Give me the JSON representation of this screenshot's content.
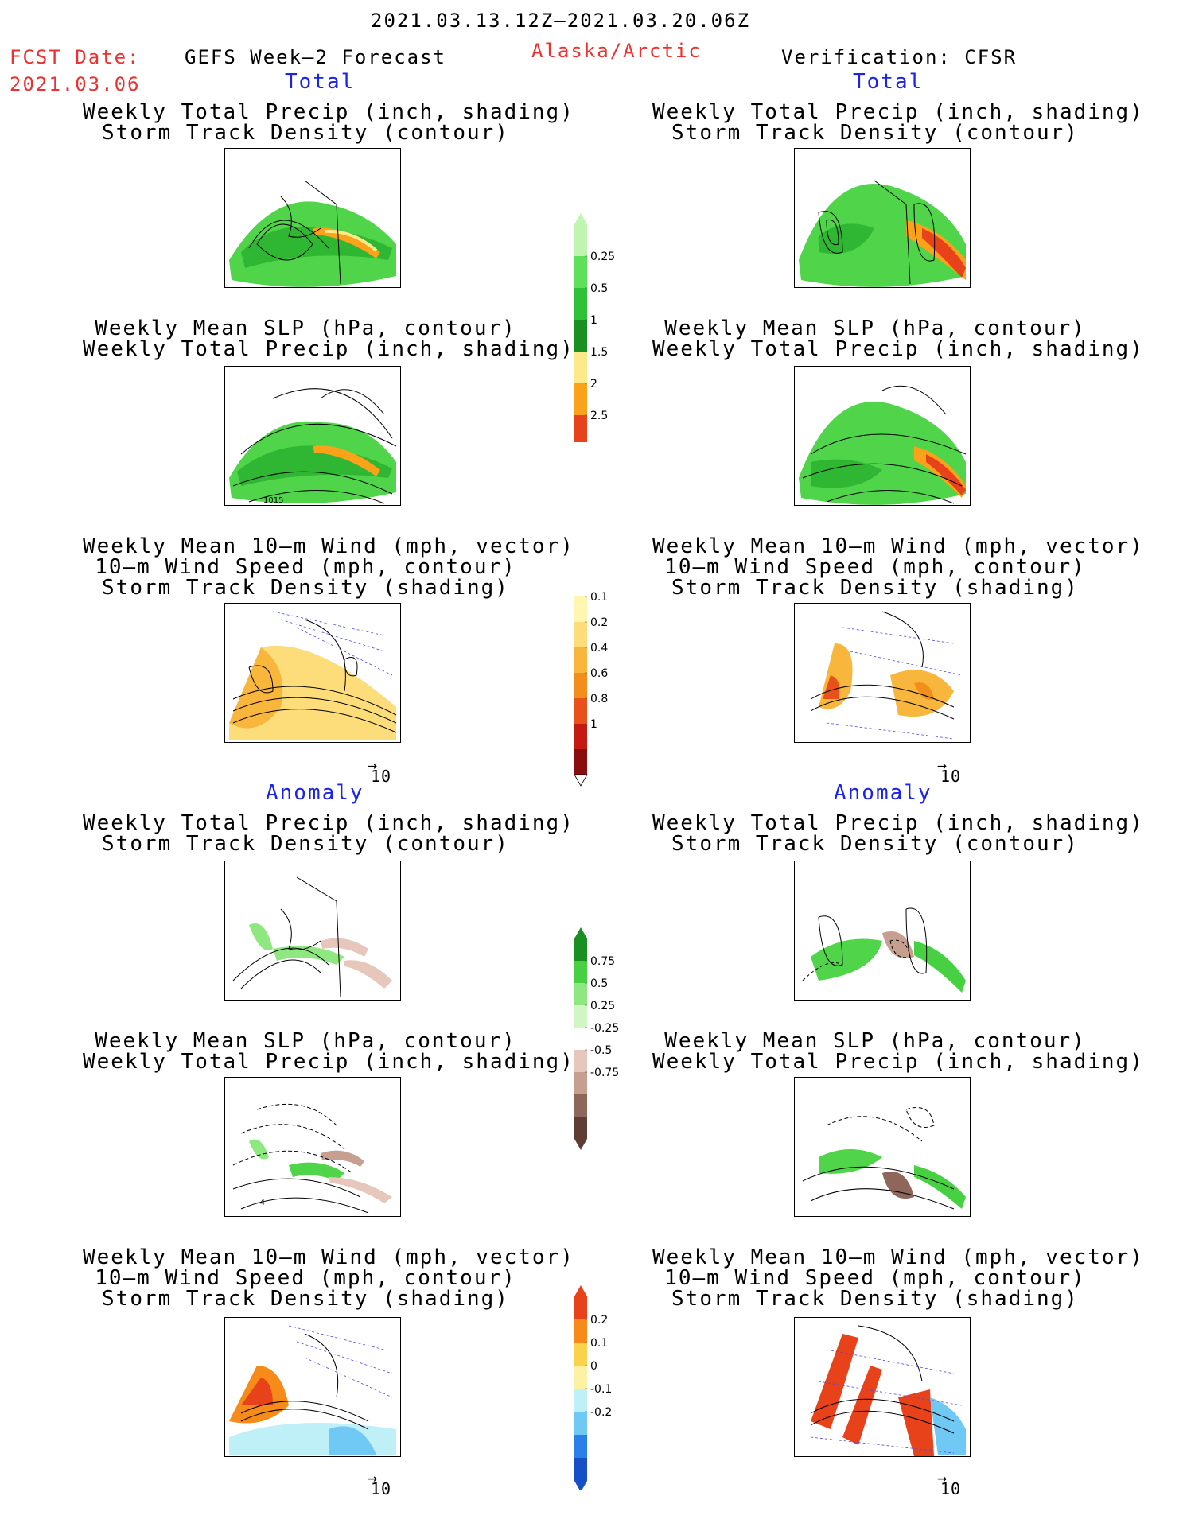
{
  "header": {
    "date_range": "2021.03.13.12Z–2021.03.20.06Z",
    "fcst_label": "FCST Date:",
    "fcst_date": "2021.03.06",
    "left_title": "GEFS Week–2 Forecast",
    "region": "Alaska/Arctic",
    "right_title": "Verification: CFSR"
  },
  "sections": {
    "total": "Total",
    "anomaly": "Anomaly"
  },
  "captions": {
    "precip_track": [
      "Weekly Total Precip (inch, shading)",
      "Storm Track Density (contour)"
    ],
    "slp_precip": [
      "Weekly Mean SLP (hPa, contour)",
      "Weekly Total Precip (inch, shading)"
    ],
    "wind_track": [
      "Weekly Mean 10–m Wind (mph, vector)",
      "10–m Wind Speed (mph, contour)",
      "Storm Track Density (shading)"
    ]
  },
  "vector_scale": "10",
  "map_labels": {
    "slp_total_contour": "1015",
    "slp_anom_contour": "-4"
  },
  "colorbars": {
    "precip_total": {
      "labels": [
        "0.25",
        "0.5",
        "1",
        "1.5",
        "2",
        "2.5"
      ],
      "colors": [
        "#bff5b0",
        "#5fe05a",
        "#2fc236",
        "#1a8f22",
        "#fbe98a",
        "#f9a21a",
        "#e8421b"
      ]
    },
    "track_total": {
      "labels": [
        "0.1",
        "0.2",
        "0.4",
        "0.6",
        "0.8",
        "1"
      ],
      "colors": [
        "#ffffff",
        "#fff6b0",
        "#fddc7a",
        "#f8b63d",
        "#f28e1b",
        "#e8521a",
        "#c41a12",
        "#8a0e0e"
      ]
    },
    "precip_anom": {
      "labels": [
        "0.75",
        "0.5",
        "0.25",
        "-0.25",
        "-0.5",
        "-0.75"
      ],
      "colors": [
        "#1a8f22",
        "#48d043",
        "#8fe87f",
        "#cff6c3",
        "#ffffff",
        "#e7c7bb",
        "#c79f91",
        "#8e665a",
        "#5e3e34"
      ]
    },
    "track_anom": {
      "labels": [
        "0.2",
        "0.1",
        "0",
        "-0.1",
        "-0.2"
      ],
      "colors": [
        "#e8421b",
        "#f68b1a",
        "#fbd24c",
        "#fdf2a3",
        "#bff0f8",
        "#70c8f4",
        "#2880e8",
        "#1650c8"
      ]
    }
  }
}
